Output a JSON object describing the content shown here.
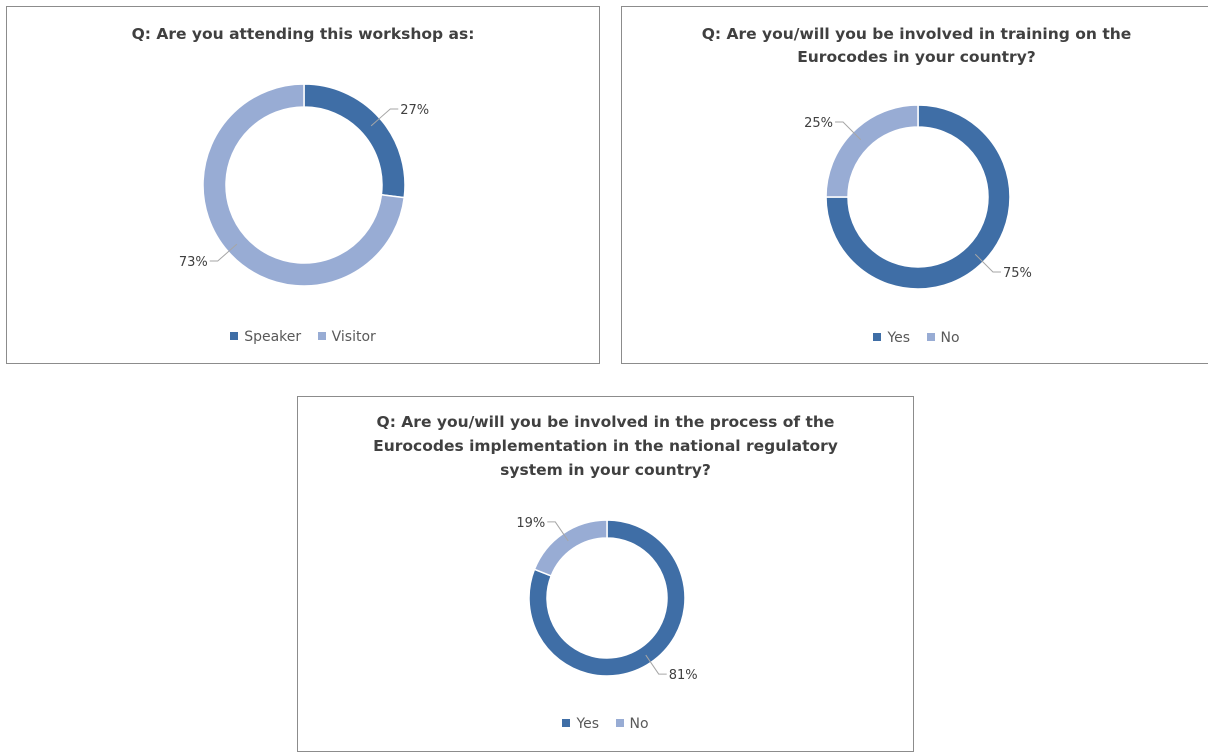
{
  "colors": {
    "yes": "#3f6ea6",
    "no": "#98acd4",
    "border": "#8c8c8c",
    "text": "#404040"
  },
  "chart_data": [
    {
      "type": "pie",
      "donut": true,
      "title_lines": [
        "Q: Are you attending this workshop as:"
      ],
      "categories": [
        "Speaker",
        "Visitor"
      ],
      "values": [
        27,
        73
      ],
      "labels": [
        "27%",
        "73%"
      ],
      "colors": [
        "#3f6ea6",
        "#98acd4"
      ],
      "legend_position": "bottom"
    },
    {
      "type": "pie",
      "donut": true,
      "title_lines": [
        "Q: Are you/will you be involved in training on the",
        "Eurocodes in your country?"
      ],
      "categories": [
        "Yes",
        "No"
      ],
      "values": [
        75,
        25
      ],
      "labels": [
        "75%",
        "25%"
      ],
      "colors": [
        "#3f6ea6",
        "#98acd4"
      ],
      "legend_position": "bottom"
    },
    {
      "type": "pie",
      "donut": true,
      "title_lines": [
        "Q: Are you/will you be involved in the process of the",
        "Eurocodes implementation in the national regulatory",
        "system in your country?"
      ],
      "categories": [
        "Yes",
        "No"
      ],
      "values": [
        81,
        19
      ],
      "labels": [
        "81%",
        "19%"
      ],
      "colors": [
        "#3f6ea6",
        "#98acd4"
      ],
      "legend_position": "bottom"
    }
  ]
}
